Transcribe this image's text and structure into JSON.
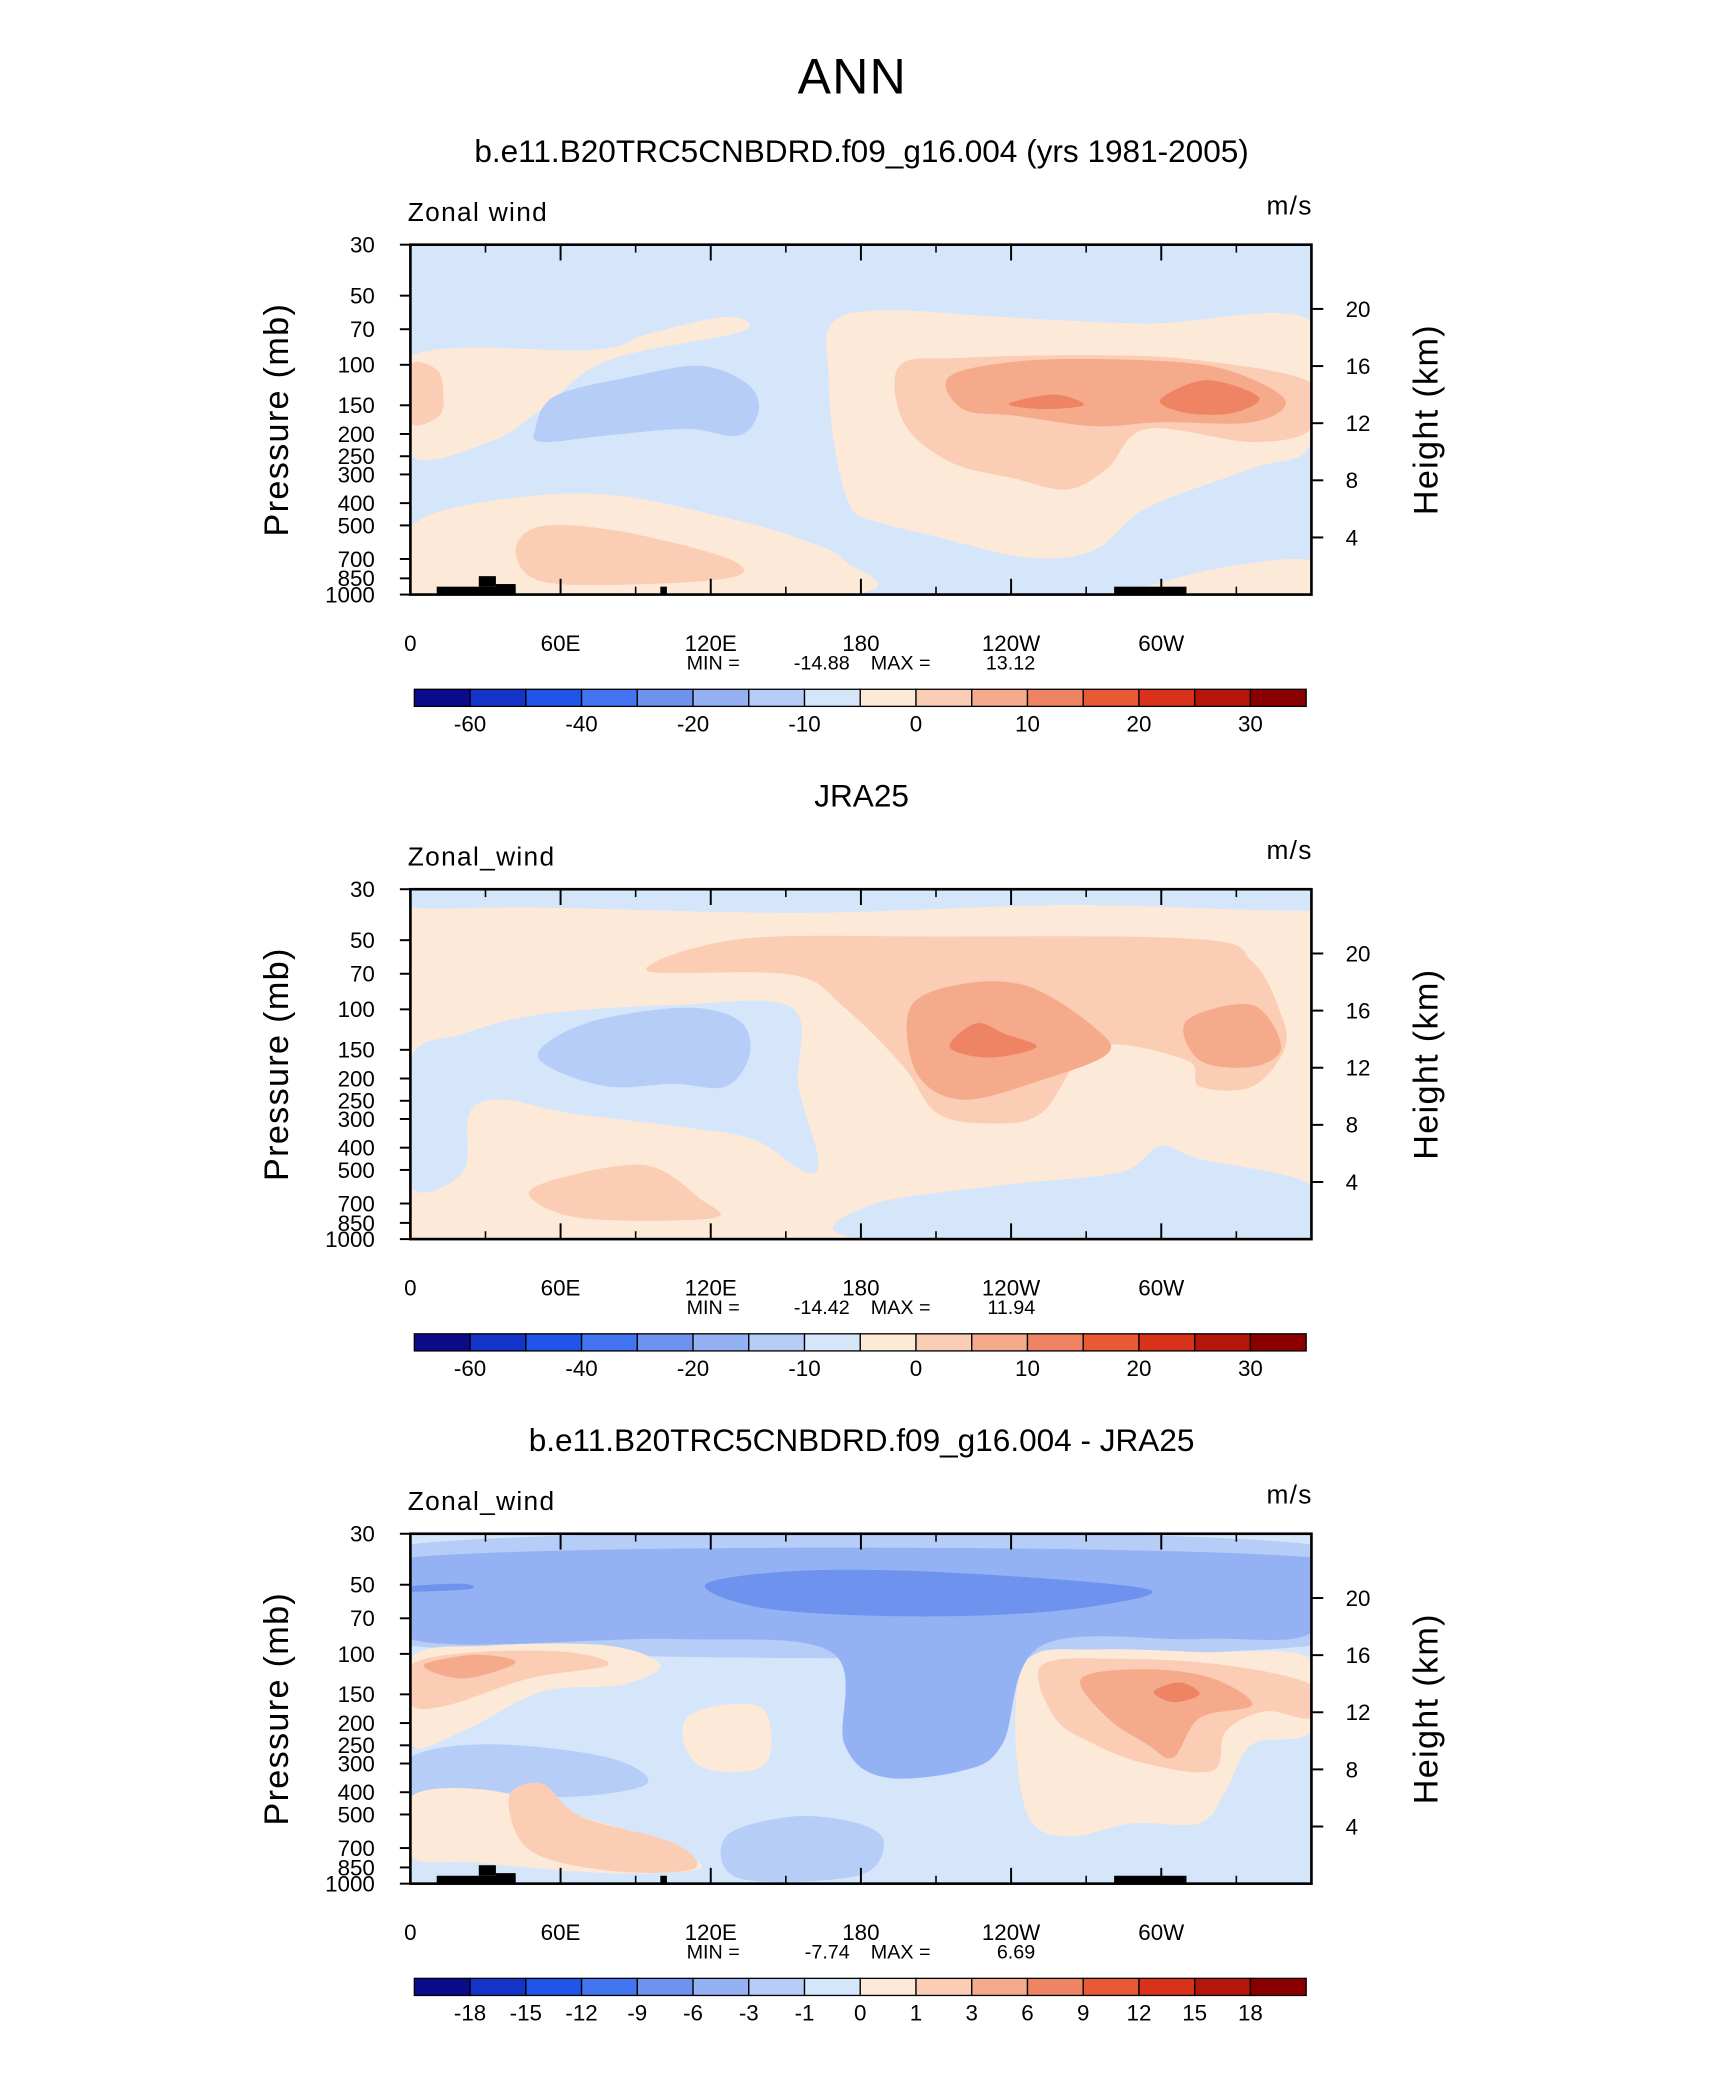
{
  "title": "ANN",
  "chart_data": [
    {
      "type": "contour",
      "title": "b.e11.B20TRC5CNBDRD.f09_g16.004 (yrs 1981-2005)",
      "left_label": "Zonal wind",
      "right_label": "m/s",
      "ylabel": "Pressure (mb)",
      "y2label": "Height (km)",
      "ylim": [
        1000,
        30
      ],
      "yscale": "log",
      "yticks": [
        30,
        50,
        70,
        100,
        150,
        200,
        250,
        300,
        400,
        500,
        700,
        850,
        1000
      ],
      "y2lim": [
        0,
        24.5
      ],
      "y2ticks": [
        4,
        8,
        12,
        16,
        20
      ],
      "xlim": [
        0,
        360
      ],
      "xticks": [
        0,
        {
          "value": 60,
          "label": "60E"
        },
        {
          "value": 120,
          "label": "120E"
        },
        180,
        {
          "value": 240,
          "label": "120W"
        },
        {
          "value": 300,
          "label": "60W"
        }
      ],
      "min_label": "MIN =",
      "min": -14.88,
      "max_label": "MAX =",
      "max": 13.12,
      "colorbar": {
        "colors": [
          "#0b0b8a",
          "#1433c8",
          "#1f55e8",
          "#4375f0",
          "#6d93ef",
          "#94b2f3",
          "#b6cdf7",
          "#d6e6fa",
          "#fde9d8",
          "#fbcdb4",
          "#f5aa8c",
          "#ee8464",
          "#e85a34",
          "#d8321a",
          "#b4160a",
          "#8a0000"
        ],
        "ticks": [
          -60,
          -40,
          -20,
          -10,
          0,
          10,
          20,
          30
        ]
      }
    },
    {
      "type": "contour",
      "title": "JRA25",
      "left_label": "Zonal_wind",
      "right_label": "m/s",
      "ylabel": "Pressure (mb)",
      "y2label": "Height (km)",
      "ylim": [
        1000,
        30
      ],
      "yscale": "log",
      "yticks": [
        30,
        50,
        70,
        100,
        150,
        200,
        250,
        300,
        400,
        500,
        700,
        850,
        1000
      ],
      "y2lim": [
        0,
        24.5
      ],
      "y2ticks": [
        4,
        8,
        12,
        16,
        20
      ],
      "xlim": [
        0,
        360
      ],
      "xticks": [
        0,
        {
          "value": 60,
          "label": "60E"
        },
        {
          "value": 120,
          "label": "120E"
        },
        180,
        {
          "value": 240,
          "label": "120W"
        },
        {
          "value": 300,
          "label": "60W"
        }
      ],
      "min_label": "MIN =",
      "min": -14.42,
      "max_label": "MAX =",
      "max": 11.94,
      "colorbar": {
        "colors": [
          "#0b0b8a",
          "#1433c8",
          "#1f55e8",
          "#4375f0",
          "#6d93ef",
          "#94b2f3",
          "#b6cdf7",
          "#d6e6fa",
          "#fde9d8",
          "#fbcdb4",
          "#f5aa8c",
          "#ee8464",
          "#e85a34",
          "#d8321a",
          "#b4160a",
          "#8a0000"
        ],
        "ticks": [
          -60,
          -40,
          -20,
          -10,
          0,
          10,
          20,
          30
        ]
      }
    },
    {
      "type": "contour",
      "title": "b.e11.B20TRC5CNBDRD.f09_g16.004 - JRA25",
      "left_label": "Zonal_wind",
      "right_label": "m/s",
      "ylabel": "Pressure (mb)",
      "y2label": "Height (km)",
      "ylim": [
        1000,
        30
      ],
      "yscale": "log",
      "yticks": [
        30,
        50,
        70,
        100,
        150,
        200,
        250,
        300,
        400,
        500,
        700,
        850,
        1000
      ],
      "y2lim": [
        0,
        24.5
      ],
      "y2ticks": [
        4,
        8,
        12,
        16,
        20
      ],
      "xlim": [
        0,
        360
      ],
      "xticks": [
        0,
        {
          "value": 60,
          "label": "60E"
        },
        {
          "value": 120,
          "label": "120E"
        },
        180,
        {
          "value": 240,
          "label": "120W"
        },
        {
          "value": 300,
          "label": "60W"
        }
      ],
      "min_label": "MIN =",
      "min": -7.74,
      "max_label": "MAX =",
      "max": 6.69,
      "colorbar": {
        "colors": [
          "#0b0b8a",
          "#1433c8",
          "#1f55e8",
          "#4375f0",
          "#6d93ef",
          "#94b2f3",
          "#b6cdf7",
          "#d6e6fa",
          "#fde9d8",
          "#fbcdb4",
          "#f5aa8c",
          "#ee8464",
          "#e85a34",
          "#d8321a",
          "#b4160a",
          "#8a0000"
        ],
        "ticks": [
          -18,
          -15,
          -12,
          -9,
          -6,
          -3,
          -1,
          0,
          1,
          3,
          6,
          9,
          12,
          15,
          18
        ]
      }
    }
  ]
}
